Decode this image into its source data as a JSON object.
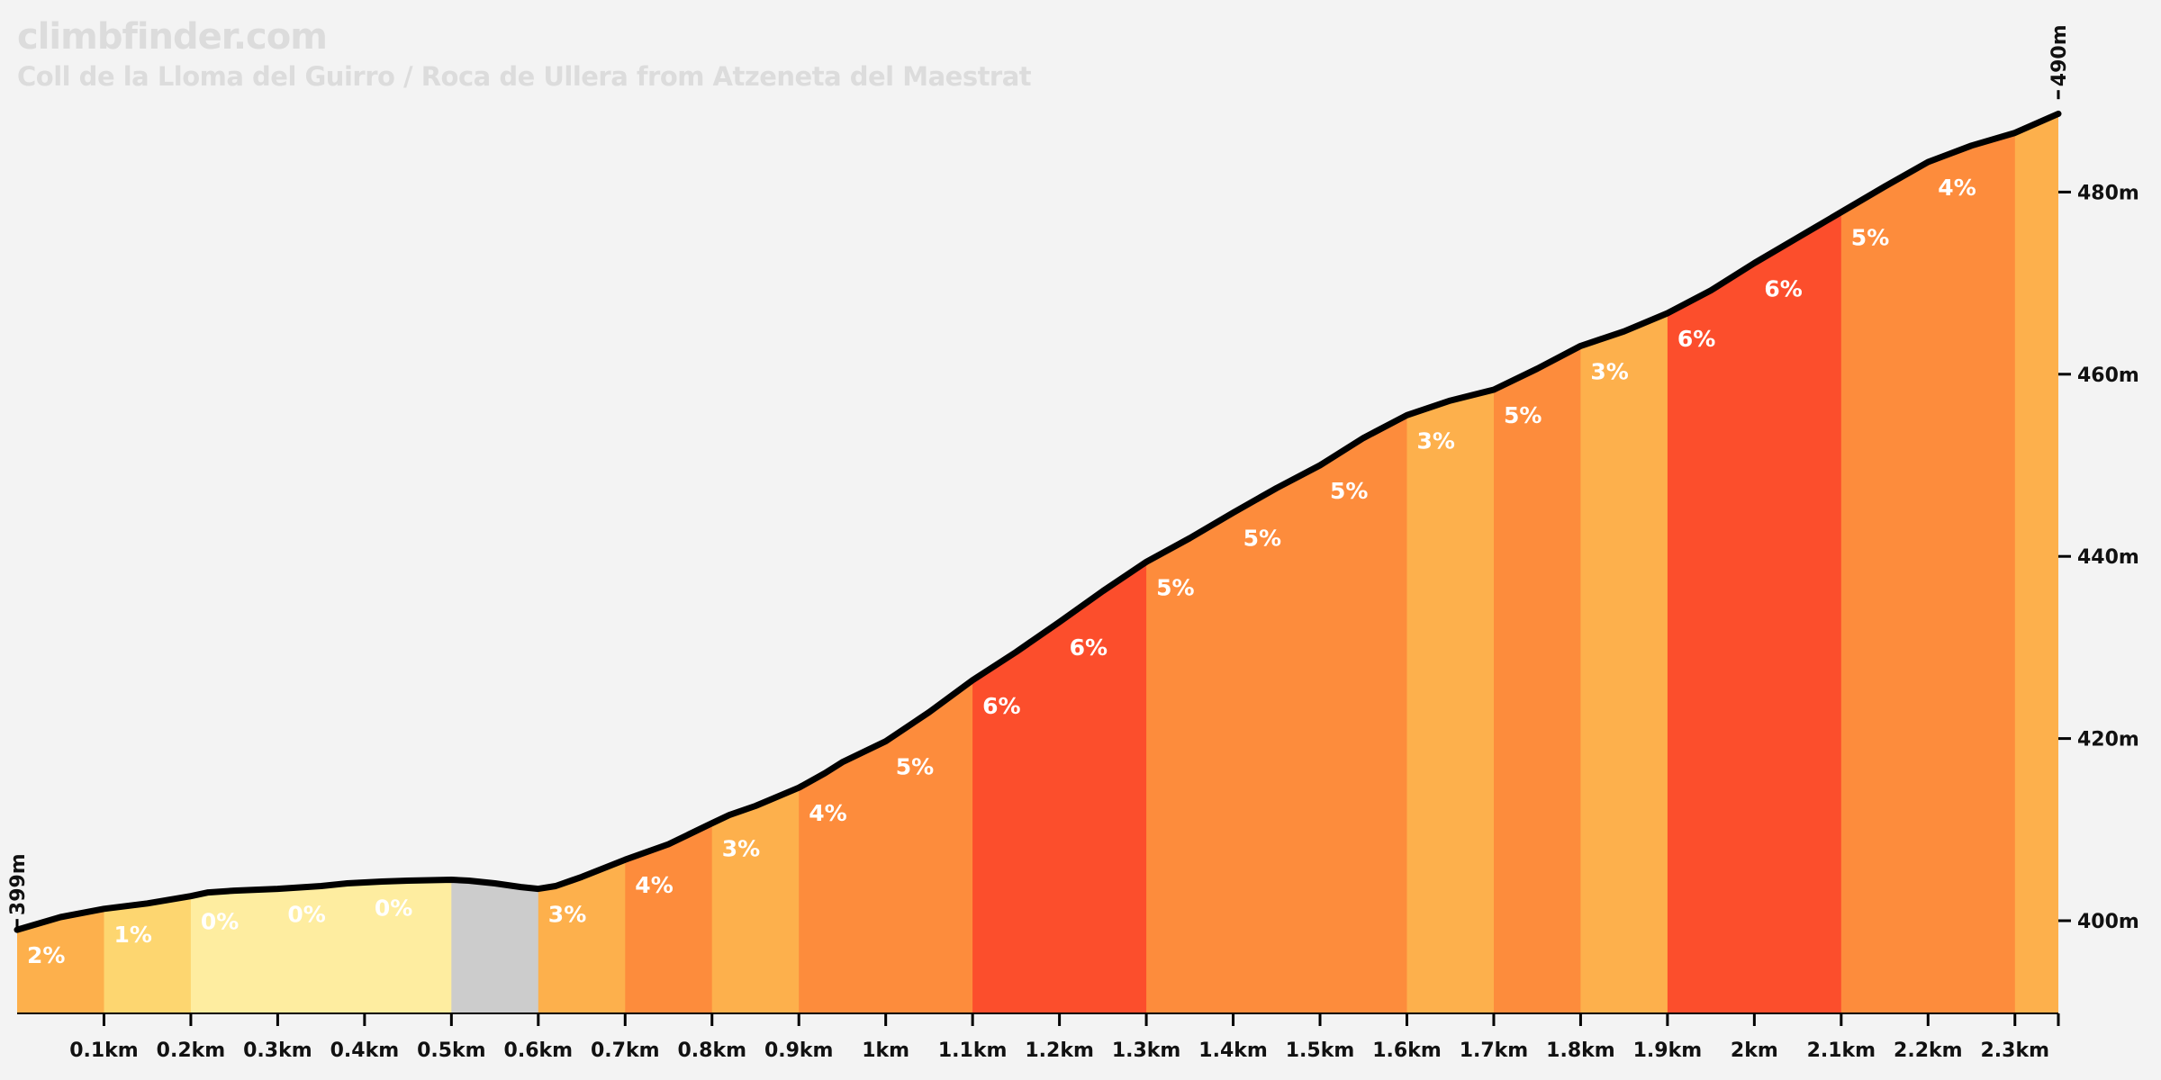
{
  "site": "climbfinder.com",
  "title": "Coll de la Lloma del Guirro / Roca de Ullera from Atzeneta del Maestrat",
  "chart_data": {
    "type": "area",
    "title": "Coll de la Lloma del Guirro / Roca de Ullera from Atzeneta del Maestrat",
    "xlim": [
      0,
      2.35
    ],
    "ylim": [
      390,
      490
    ],
    "xlabel": "",
    "ylabel": "",
    "x_ticks": [
      {
        "value": 0.1,
        "label": "0.1km"
      },
      {
        "value": 0.2,
        "label": "0.2km"
      },
      {
        "value": 0.3,
        "label": "0.3km"
      },
      {
        "value": 0.4,
        "label": "0.4km"
      },
      {
        "value": 0.5,
        "label": "0.5km"
      },
      {
        "value": 0.6,
        "label": "0.6km"
      },
      {
        "value": 0.7,
        "label": "0.7km"
      },
      {
        "value": 0.8,
        "label": "0.8km"
      },
      {
        "value": 0.9,
        "label": "0.9km"
      },
      {
        "value": 1.0,
        "label": "1km"
      },
      {
        "value": 1.1,
        "label": "1.1km"
      },
      {
        "value": 1.2,
        "label": "1.2km"
      },
      {
        "value": 1.3,
        "label": "1.3km"
      },
      {
        "value": 1.4,
        "label": "1.4km"
      },
      {
        "value": 1.5,
        "label": "1.5km"
      },
      {
        "value": 1.6,
        "label": "1.6km"
      },
      {
        "value": 1.7,
        "label": "1.7km"
      },
      {
        "value": 1.8,
        "label": "1.8km"
      },
      {
        "value": 1.9,
        "label": "1.9km"
      },
      {
        "value": 2.0,
        "label": "2km"
      },
      {
        "value": 2.1,
        "label": "2.1km"
      },
      {
        "value": 2.2,
        "label": "2.2km"
      },
      {
        "value": 2.3,
        "label": "2.3km"
      }
    ],
    "y_ticks": [
      {
        "value": 400,
        "label": "400m"
      },
      {
        "value": 420,
        "label": "420m"
      },
      {
        "value": 440,
        "label": "440m"
      },
      {
        "value": 460,
        "label": "460m"
      },
      {
        "value": 480,
        "label": "480m"
      }
    ],
    "start_label": {
      "value": 399,
      "label": "399m"
    },
    "end_label": {
      "value": 490,
      "label": "490m"
    },
    "profile": [
      [
        0.0,
        399.0
      ],
      [
        0.05,
        400.4
      ],
      [
        0.1,
        401.3
      ],
      [
        0.15,
        401.9
      ],
      [
        0.2,
        402.7
      ],
      [
        0.22,
        403.1
      ],
      [
        0.25,
        403.3
      ],
      [
        0.3,
        403.5
      ],
      [
        0.35,
        403.8
      ],
      [
        0.38,
        404.1
      ],
      [
        0.42,
        404.3
      ],
      [
        0.45,
        404.4
      ],
      [
        0.5,
        404.5
      ],
      [
        0.52,
        404.4
      ],
      [
        0.55,
        404.1
      ],
      [
        0.58,
        403.7
      ],
      [
        0.6,
        403.5
      ],
      [
        0.62,
        403.8
      ],
      [
        0.65,
        404.8
      ],
      [
        0.7,
        406.7
      ],
      [
        0.75,
        408.4
      ],
      [
        0.8,
        410.7
      ],
      [
        0.82,
        411.6
      ],
      [
        0.85,
        412.6
      ],
      [
        0.9,
        414.6
      ],
      [
        0.93,
        416.2
      ],
      [
        0.95,
        417.4
      ],
      [
        1.0,
        419.7
      ],
      [
        1.05,
        422.9
      ],
      [
        1.1,
        426.4
      ],
      [
        1.15,
        429.5
      ],
      [
        1.2,
        432.8
      ],
      [
        1.25,
        436.2
      ],
      [
        1.3,
        439.4
      ],
      [
        1.35,
        442.0
      ],
      [
        1.4,
        444.8
      ],
      [
        1.45,
        447.5
      ],
      [
        1.5,
        450.0
      ],
      [
        1.55,
        453.0
      ],
      [
        1.6,
        455.5
      ],
      [
        1.65,
        457.1
      ],
      [
        1.7,
        458.3
      ],
      [
        1.75,
        460.6
      ],
      [
        1.8,
        463.1
      ],
      [
        1.85,
        464.7
      ],
      [
        1.9,
        466.7
      ],
      [
        1.95,
        469.2
      ],
      [
        2.0,
        472.2
      ],
      [
        2.05,
        475.0
      ],
      [
        2.1,
        477.8
      ],
      [
        2.15,
        480.6
      ],
      [
        2.2,
        483.3
      ],
      [
        2.25,
        485.1
      ],
      [
        2.3,
        486.5
      ],
      [
        2.35,
        488.6
      ]
    ],
    "segments": [
      {
        "start": 0.0,
        "end": 0.1,
        "grade": "2%",
        "color": "#fdb04c",
        "text": "#ffffff"
      },
      {
        "start": 0.1,
        "end": 0.2,
        "grade": "1%",
        "color": "#fdd670",
        "text": "#ffffff"
      },
      {
        "start": 0.2,
        "end": 0.3,
        "grade": "0%",
        "color": "#feeda0",
        "text": "#ffffff"
      },
      {
        "start": 0.3,
        "end": 0.4,
        "grade": "0%",
        "color": "#feeda0",
        "text": "#ffffff"
      },
      {
        "start": 0.4,
        "end": 0.5,
        "grade": "0%",
        "color": "#feeda0",
        "text": "#ffffff"
      },
      {
        "start": 0.5,
        "end": 0.6,
        "grade": "",
        "color": "#cccccc",
        "text": "#ffffff"
      },
      {
        "start": 0.6,
        "end": 0.7,
        "grade": "3%",
        "color": "#fdb04c",
        "text": "#ffffff"
      },
      {
        "start": 0.7,
        "end": 0.8,
        "grade": "4%",
        "color": "#fd8c3c",
        "text": "#ffffff"
      },
      {
        "start": 0.8,
        "end": 0.9,
        "grade": "3%",
        "color": "#fdb04c",
        "text": "#ffffff"
      },
      {
        "start": 0.9,
        "end": 1.0,
        "grade": "4%",
        "color": "#fd8c3c",
        "text": "#ffffff"
      },
      {
        "start": 1.0,
        "end": 1.1,
        "grade": "5%",
        "color": "#fd8c3c",
        "text": "#ffffff"
      },
      {
        "start": 1.1,
        "end": 1.2,
        "grade": "6%",
        "color": "#fc4e2c",
        "text": "#ffffff"
      },
      {
        "start": 1.2,
        "end": 1.3,
        "grade": "6%",
        "color": "#fc4e2c",
        "text": "#ffffff"
      },
      {
        "start": 1.3,
        "end": 1.4,
        "grade": "5%",
        "color": "#fd8c3c",
        "text": "#ffffff"
      },
      {
        "start": 1.4,
        "end": 1.5,
        "grade": "5%",
        "color": "#fd8c3c",
        "text": "#ffffff"
      },
      {
        "start": 1.5,
        "end": 1.6,
        "grade": "5%",
        "color": "#fd8c3c",
        "text": "#ffffff"
      },
      {
        "start": 1.6,
        "end": 1.7,
        "grade": "3%",
        "color": "#fdb04c",
        "text": "#ffffff"
      },
      {
        "start": 1.7,
        "end": 1.8,
        "grade": "5%",
        "color": "#fd8c3c",
        "text": "#ffffff"
      },
      {
        "start": 1.8,
        "end": 1.9,
        "grade": "3%",
        "color": "#fdb04c",
        "text": "#ffffff"
      },
      {
        "start": 1.9,
        "end": 2.0,
        "grade": "6%",
        "color": "#fc4e2c",
        "text": "#ffffff"
      },
      {
        "start": 2.0,
        "end": 2.1,
        "grade": "6%",
        "color": "#fc4e2c",
        "text": "#ffffff"
      },
      {
        "start": 2.1,
        "end": 2.2,
        "grade": "5%",
        "color": "#fd8c3c",
        "text": "#ffffff"
      },
      {
        "start": 2.2,
        "end": 2.3,
        "grade": "4%",
        "color": "#fd8c3c",
        "text": "#ffffff"
      },
      {
        "start": 2.3,
        "end": 2.35,
        "grade": "",
        "color": "#fdb04c",
        "text": "#ffffff"
      }
    ]
  }
}
